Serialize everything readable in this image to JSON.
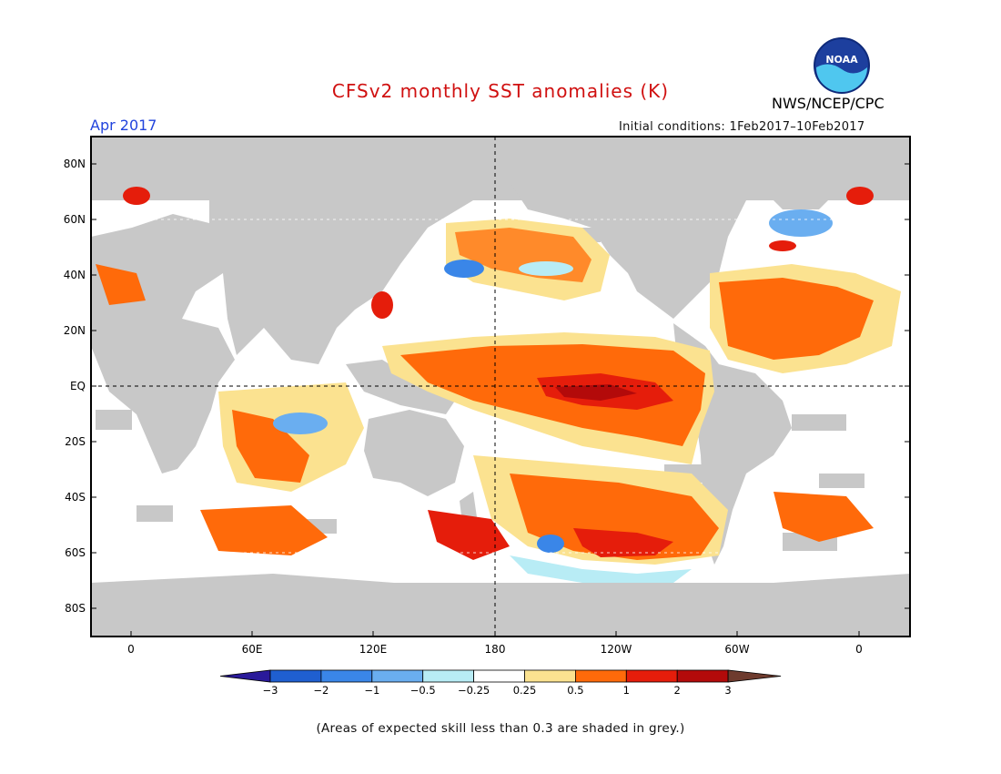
{
  "title": "CFSv2 monthly SST anomalies (K)",
  "agency": "NWS/NCEP/CPC",
  "logo_text": "NOAA",
  "period": "Apr 2017",
  "initial_conditions": "Initial conditions: 1Feb2017–10Feb2017",
  "lat_labels": [
    "80N",
    "60N",
    "40N",
    "20N",
    "EQ",
    "20S",
    "40S",
    "60S",
    "80S"
  ],
  "lon_labels": [
    "0",
    "60E",
    "120E",
    "180",
    "120W",
    "60W",
    "0"
  ],
  "colorbar": {
    "labels": [
      "−3",
      "−2",
      "−1",
      "−0.5",
      "−0.25",
      "0.25",
      "0.5",
      "1",
      "2",
      "3"
    ],
    "colors": [
      "#2a1a9a",
      "#1f5fd0",
      "#3a86e8",
      "#6aaef0",
      "#b8ecf5",
      "#ffffff",
      "#fbe290",
      "#ff6a0a",
      "#e51d0b",
      "#b30a0a",
      "#6e3b2e"
    ]
  },
  "colors": {
    "land": "#c8c8c8",
    "title": "#d01010",
    "period": "#2244dd"
  },
  "note": "(Areas of expected skill less than 0.3 are shaded in grey.)"
}
